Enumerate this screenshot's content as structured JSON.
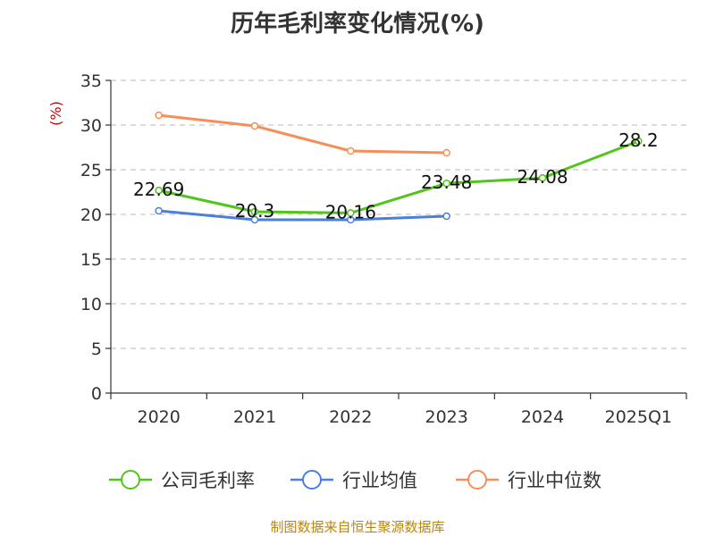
{
  "chart_data": {
    "type": "line",
    "title": "历年毛利率变化情况(%)",
    "ylabel": "(%)",
    "xlabel": "",
    "categories": [
      "2020",
      "2021",
      "2022",
      "2023",
      "2024",
      "2025Q1"
    ],
    "ylim": [
      0,
      35
    ],
    "yticks": [
      0,
      5,
      10,
      15,
      20,
      25,
      30,
      35
    ],
    "grid": true,
    "legend_position": "bottom",
    "series": [
      {
        "name": "公司毛利率",
        "color": "#52c41a",
        "values": [
          22.69,
          20.3,
          20.16,
          23.48,
          24.08,
          28.2
        ],
        "labels": [
          "22.69",
          "20.3",
          "20.16",
          "23.48",
          "24.08",
          "28.2"
        ]
      },
      {
        "name": "行业均值",
        "color": "#4a7fdc",
        "values": [
          20.4,
          19.4,
          19.4,
          19.8,
          null,
          null
        ]
      },
      {
        "name": "行业中位数",
        "color": "#f58f5a",
        "values": [
          31.1,
          29.9,
          27.1,
          26.9,
          null,
          null
        ]
      }
    ]
  },
  "source_note": "制图数据来自恒生聚源数据库"
}
